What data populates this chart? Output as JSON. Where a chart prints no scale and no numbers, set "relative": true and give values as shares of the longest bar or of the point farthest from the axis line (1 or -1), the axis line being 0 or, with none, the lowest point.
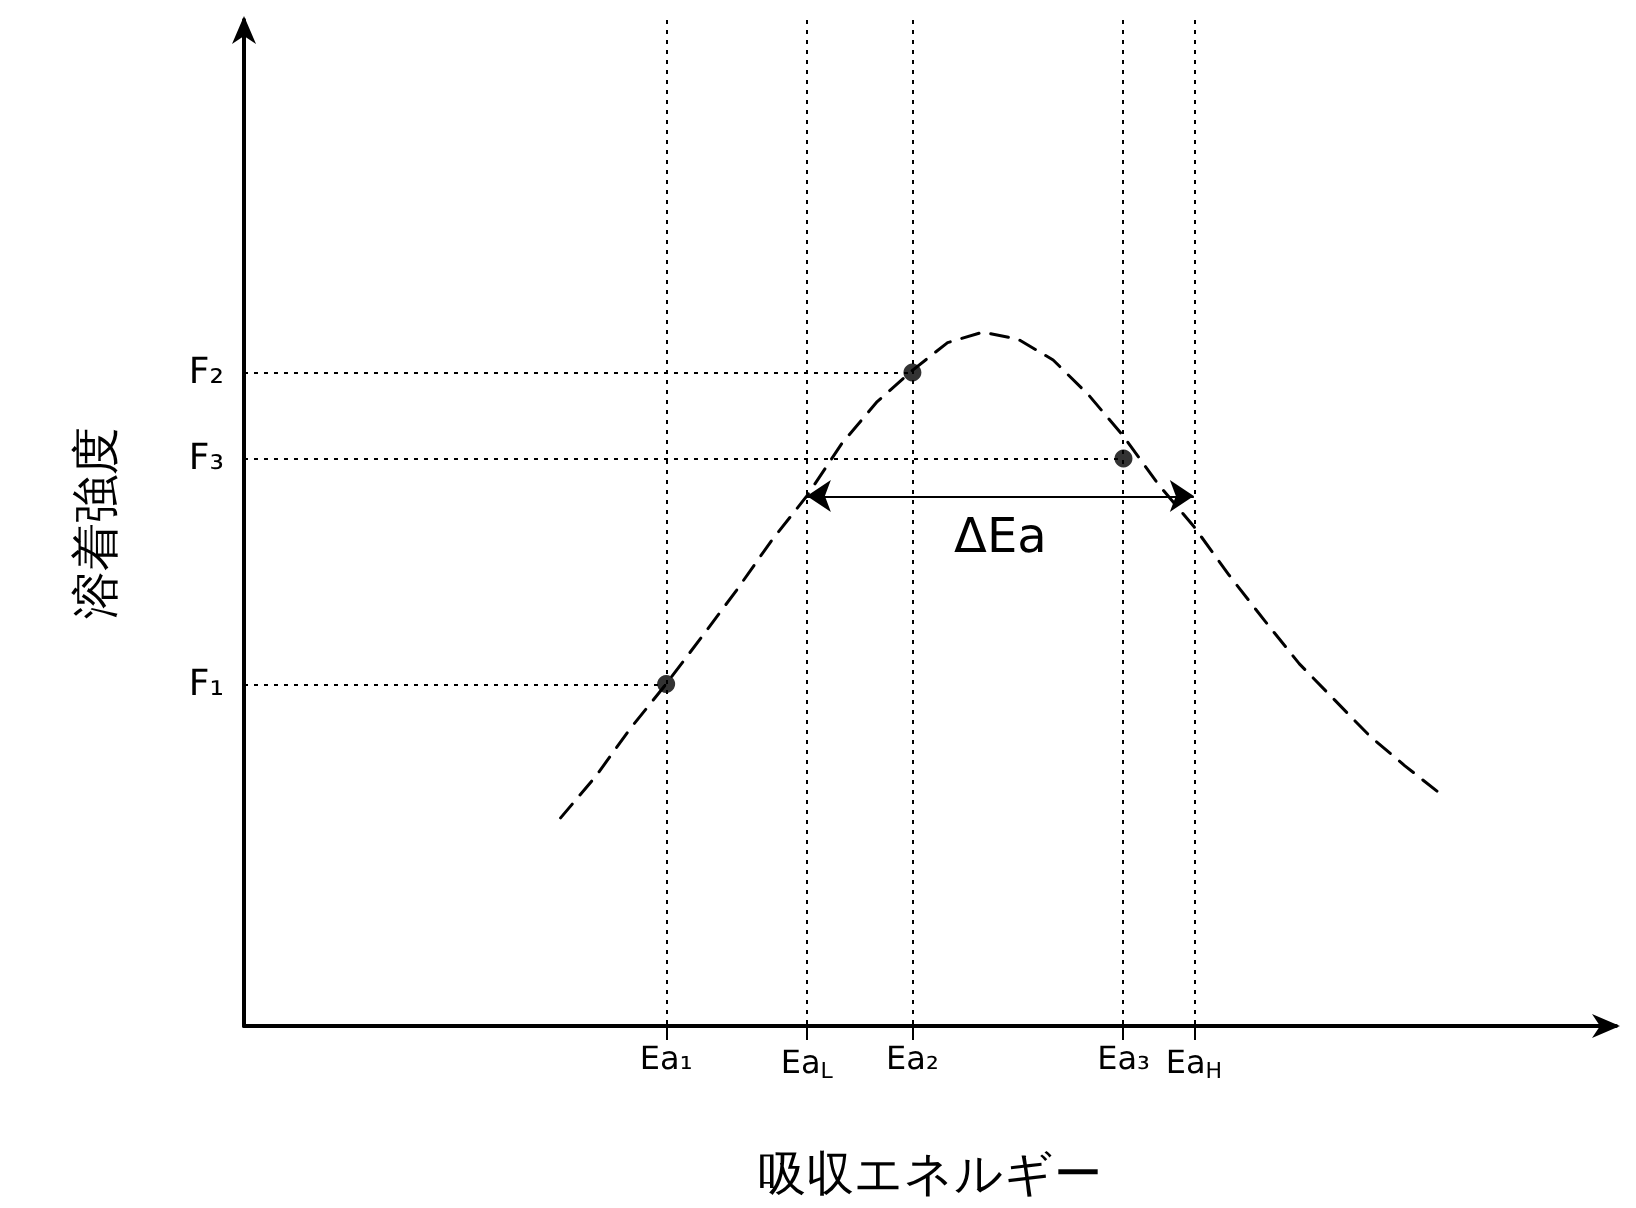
{
  "chart_data": {
    "type": "line",
    "xlabel": "吸収エネルギー",
    "ylabel": "溶着強度",
    "relative": true,
    "categories": [
      null,
      null,
      null,
      null,
      null,
      null,
      null,
      null,
      null,
      null,
      null,
      null,
      "Ea₁",
      null,
      null,
      null,
      "Ea$_{L}$",
      null,
      null,
      "Ea₂",
      null,
      null,
      null,
      null,
      null,
      "Ea₃",
      null,
      "Ea$_{H}$",
      null,
      null,
      null,
      null,
      null,
      null,
      null,
      null,
      null,
      null,
      null,
      null
    ],
    "grid": "x",
    "series": [
      {
        "color": "#000000",
        "line_style": "dashed",
        "marker": "none",
        "values": [
          null,
          null,
          null,
          null,
          null,
          null,
          null,
          null,
          null,
          0.3,
          0.36,
          0.43,
          0.493,
          0.56,
          0.628,
          0.7,
          0.764,
          0.84,
          0.9,
          0.945,
          0.985,
          1.0,
          0.99,
          0.96,
          0.91,
          0.85,
          0.78,
          0.72,
          0.65,
          0.585,
          0.522,
          0.47,
          0.418,
          0.375,
          0.335,
          null,
          null,
          null,
          null,
          null
        ]
      },
      {
        "type": "scatter",
        "color": "#000000",
        "marker": "circle",
        "x": [
          "Ea₁",
          "Ea₂",
          "Ea₃"
        ],
        "values": [
          0.493,
          0.942,
          0.818
        ]
      }
    ],
    "annotations": [
      {
        "text": "F₁",
        "x": "Ea₁",
        "y": 0.493
      },
      {
        "text": "F₂",
        "x": "Ea₂",
        "y": 0.942
      },
      {
        "text": "F₃",
        "x": "Ea₃",
        "y": 0.818
      },
      "ΔEa"
    ]
  }
}
